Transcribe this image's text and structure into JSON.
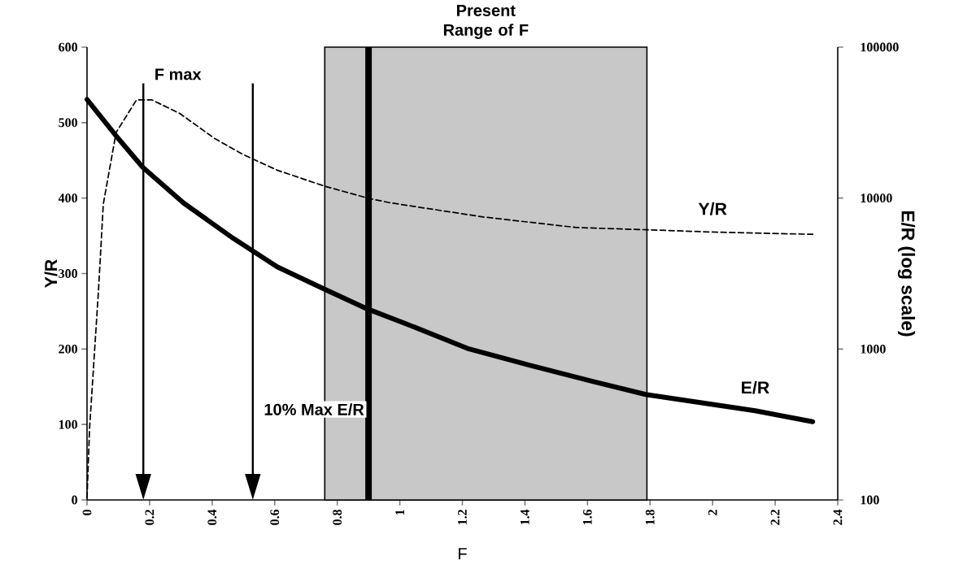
{
  "chart_data": {
    "type": "line",
    "xlabel": "F",
    "ylabel": "Y/R",
    "y2label": "E/R (log scale)",
    "xlim": [
      0,
      2.4
    ],
    "xticks": [
      0,
      0.2,
      0.4,
      0.6,
      0.8,
      1,
      1.2,
      1.4,
      1.6,
      1.8,
      2,
      2.2,
      2.4
    ],
    "ylim": [
      0,
      600
    ],
    "yticks": [
      0,
      100,
      200,
      300,
      400,
      500,
      600
    ],
    "y2lim": [
      100,
      100000
    ],
    "y2ticks": [
      100,
      1000,
      10000,
      100000
    ],
    "log": "y2",
    "series": [
      {
        "name": "Y/R",
        "color": "#000000",
        "line_style": "dashed",
        "x": [
          0,
          0.008,
          0.037,
          0.052,
          0.093,
          0.158,
          0.208,
          0.297,
          0.408,
          0.498,
          0.608,
          0.758,
          0.897,
          0.966,
          1.266,
          1.565,
          1.79,
          2.0,
          2.32
        ],
        "values": [
          3,
          94,
          280,
          392,
          487,
          530,
          530,
          512,
          479,
          458,
          437,
          416,
          400,
          394,
          375,
          361,
          358,
          355,
          352
        ]
      },
      {
        "name": "E/R",
        "axis": "y2",
        "color": "#000000",
        "line_style": "solid",
        "x": [
          0,
          0.093,
          0.178,
          0.308,
          0.468,
          0.608,
          0.758,
          0.897,
          1.016,
          1.216,
          1.416,
          1.616,
          1.786,
          2.136,
          2.32
        ],
        "values": [
          45000,
          25800,
          16000,
          9300,
          5400,
          3500,
          2500,
          1840,
          1480,
          1010,
          780,
          610,
          500,
          390,
          330
        ]
      }
    ],
    "bands": [
      {
        "axis": "x",
        "from": 0.76,
        "to": 1.79,
        "label": "Present Range of F",
        "color": "#c8c8c8"
      }
    ],
    "ref_lines": [
      {
        "axis": "x",
        "value": 0.9,
        "color": "#000000"
      },
      {
        "axis": "x",
        "value": 0.18,
        "label": "F max",
        "color": "#000000"
      },
      {
        "axis": "x",
        "value": 0.53,
        "label": "10% Max E/R",
        "color": "#000000"
      }
    ]
  }
}
